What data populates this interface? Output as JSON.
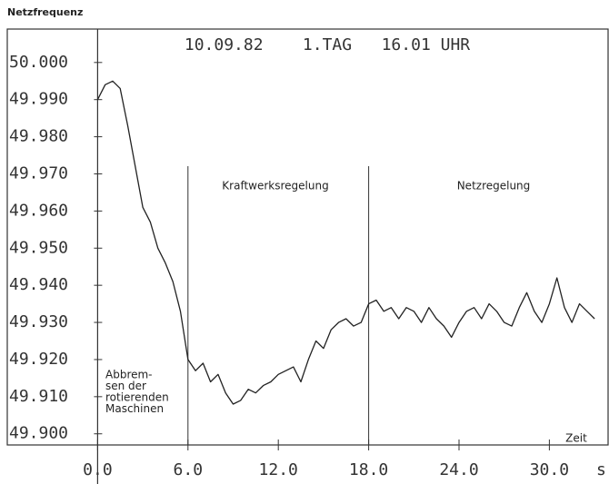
{
  "chart_data": {
    "type": "line",
    "title": "Netzfrequenz",
    "subtitle": "10.09.82    1.TAG   16.01 UHR",
    "xlabel": "Zeit",
    "x_unit": "s",
    "annotations": [
      "Kraftwerksregelung",
      "Netzregelung"
    ],
    "note_lines": [
      "Abbrem-",
      "sen der",
      "rotierenden",
      "Maschinen"
    ],
    "vlines": [
      6,
      18
    ],
    "x": [
      0,
      0.5,
      1,
      1.5,
      2,
      2.5,
      3,
      3.5,
      4,
      4.5,
      5,
      5.5,
      6,
      6.5,
      7,
      7.5,
      8,
      8.5,
      9,
      9.5,
      10,
      10.5,
      11,
      11.5,
      12,
      12.5,
      13,
      13.5,
      14,
      14.5,
      15,
      15.5,
      16,
      16.5,
      17,
      17.5,
      18,
      18.5,
      19,
      19.5,
      20,
      20.5,
      21,
      21.5,
      22,
      22.5,
      23,
      23.5,
      24,
      24.5,
      25,
      25.5,
      26,
      26.5,
      27,
      27.5,
      28,
      28.5,
      29,
      29.5,
      30,
      30.5,
      31,
      31.5,
      32,
      32.5,
      33
    ],
    "series": [
      {
        "name": "Netzfrequenz",
        "color": "#222222",
        "values": [
          49.99,
          49.994,
          49.995,
          49.993,
          49.983,
          49.972,
          49.961,
          49.957,
          49.95,
          49.946,
          49.941,
          49.933,
          49.92,
          49.917,
          49.919,
          49.914,
          49.916,
          49.911,
          49.908,
          49.909,
          49.912,
          49.911,
          49.913,
          49.914,
          49.916,
          49.917,
          49.918,
          49.914,
          49.92,
          49.925,
          49.923,
          49.928,
          49.93,
          49.931,
          49.929,
          49.93,
          49.935,
          49.936,
          49.933,
          49.934,
          49.931,
          49.934,
          49.933,
          49.93,
          49.934,
          49.931,
          49.929,
          49.926,
          49.93,
          49.933,
          49.934,
          49.931,
          49.935,
          49.933,
          49.93,
          49.929,
          49.934,
          49.938,
          49.933,
          49.93,
          49.935,
          49.942,
          49.934,
          49.93,
          49.935,
          49.933,
          49.931
        ]
      }
    ],
    "xlim": [
      -6,
      33.9
    ],
    "ylim": [
      49.897,
      50.009
    ],
    "xticks": [
      {
        "value": 0,
        "label": "0.0"
      },
      {
        "value": 6,
        "label": "6.0"
      },
      {
        "value": 12,
        "label": "12.0"
      },
      {
        "value": 18,
        "label": "18.0"
      },
      {
        "value": 24,
        "label": "24.0"
      },
      {
        "value": 30,
        "label": "30.0"
      }
    ],
    "yticks": [
      {
        "value": 49.9,
        "label": "49.900"
      },
      {
        "value": 49.91,
        "label": "49.910"
      },
      {
        "value": 49.92,
        "label": "49.920"
      },
      {
        "value": 49.93,
        "label": "49.930"
      },
      {
        "value": 49.94,
        "label": "49.940"
      },
      {
        "value": 49.95,
        "label": "49.950"
      },
      {
        "value": 49.96,
        "label": "49.960"
      },
      {
        "value": 49.97,
        "label": "49.970"
      },
      {
        "value": 49.98,
        "label": "49.980"
      },
      {
        "value": 49.99,
        "label": "49.990"
      },
      {
        "value": 50,
        "label": "50.000"
      }
    ],
    "grid": false
  }
}
